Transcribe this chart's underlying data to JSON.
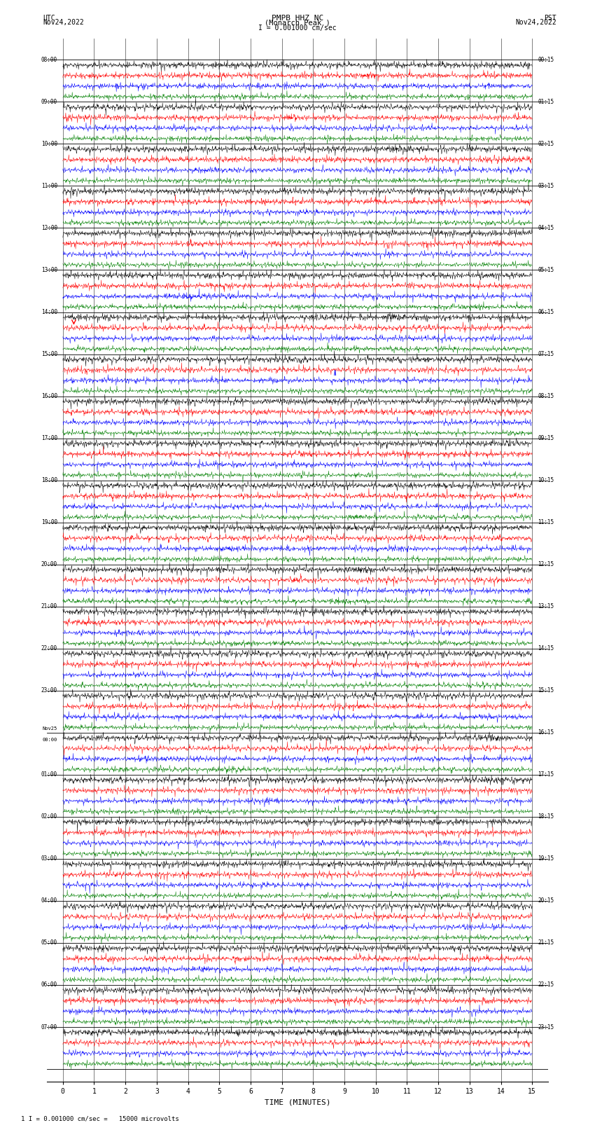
{
  "title_line1": "PMPB HHZ NC",
  "title_line2": "(Monarch Peak )",
  "scale_text": "I = 0.001000 cm/sec",
  "bottom_note": "1 I = 0.001000 cm/sec =   15000 microvolts",
  "utc_label": "UTC",
  "utc_date": "Nov24,2022",
  "pst_label": "PST",
  "pst_date": "Nov24,2022",
  "xlabel": "TIME (MINUTES)",
  "left_times": [
    "08:00",
    "09:00",
    "10:00",
    "11:00",
    "12:00",
    "13:00",
    "14:00",
    "15:00",
    "16:00",
    "17:00",
    "18:00",
    "19:00",
    "20:00",
    "21:00",
    "22:00",
    "23:00",
    "Nov25\n00:00",
    "01:00",
    "02:00",
    "03:00",
    "04:00",
    "05:00",
    "06:00",
    "07:00"
  ],
  "right_times": [
    "00:15",
    "01:15",
    "02:15",
    "03:15",
    "04:15",
    "05:15",
    "06:15",
    "07:15",
    "08:15",
    "09:15",
    "10:15",
    "11:15",
    "12:15",
    "13:15",
    "14:15",
    "15:15",
    "16:15",
    "17:15",
    "18:15",
    "19:15",
    "20:15",
    "21:15",
    "22:15",
    "23:15"
  ],
  "num_rows": 24,
  "traces_per_row": 4,
  "trace_colors": [
    "black",
    "red",
    "blue",
    "green"
  ],
  "background_color": "white",
  "minutes_per_row": 15,
  "xlim": [
    0,
    15
  ],
  "xticks": [
    0,
    1,
    2,
    3,
    4,
    5,
    6,
    7,
    8,
    9,
    10,
    11,
    12,
    13,
    14,
    15
  ],
  "seed": 42
}
